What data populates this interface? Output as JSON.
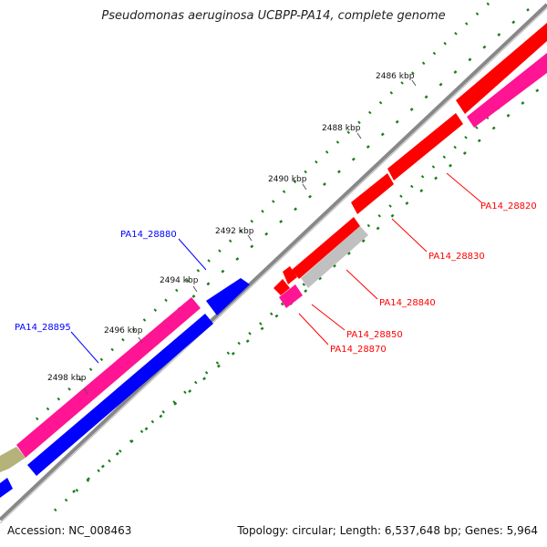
{
  "title": "Pseudomonas aeruginosa UCBPP-PA14, complete genome",
  "footer": {
    "accession": "Accession: NC_008463",
    "summary": "Topology: circular; Length: 6,537,648 bp; Genes: 5,964"
  },
  "ticks": [
    "2486 kbp",
    "2488 kbp",
    "2490 kbp",
    "2492 kbp",
    "2494 kbp",
    "2496 kbp",
    "2498 kbp"
  ],
  "genes": {
    "forward": [
      {
        "label": "PA14_28880",
        "color": "#0000ff"
      },
      {
        "label": "PA14_28895",
        "color": "#ff1493"
      }
    ],
    "reverse": [
      {
        "label": "PA14_28820",
        "color": "#ff0000"
      },
      {
        "label": "PA14_28830",
        "color": "#ff0000"
      },
      {
        "label": "PA14_28840",
        "color": "#c0c0c0"
      },
      {
        "label": "PA14_28850",
        "color": "#ff0000"
      },
      {
        "label": "PA14_28870",
        "color": "#ff1493"
      }
    ]
  },
  "colors": {
    "cds_forward": "#0000ff",
    "cds_reverse": "#ff0000",
    "pink": "#ff1493",
    "grey": "#c0c0c0",
    "olive": "#b5b27a",
    "backbone": "#888888",
    "gc_skew": "#1a7f1a"
  }
}
